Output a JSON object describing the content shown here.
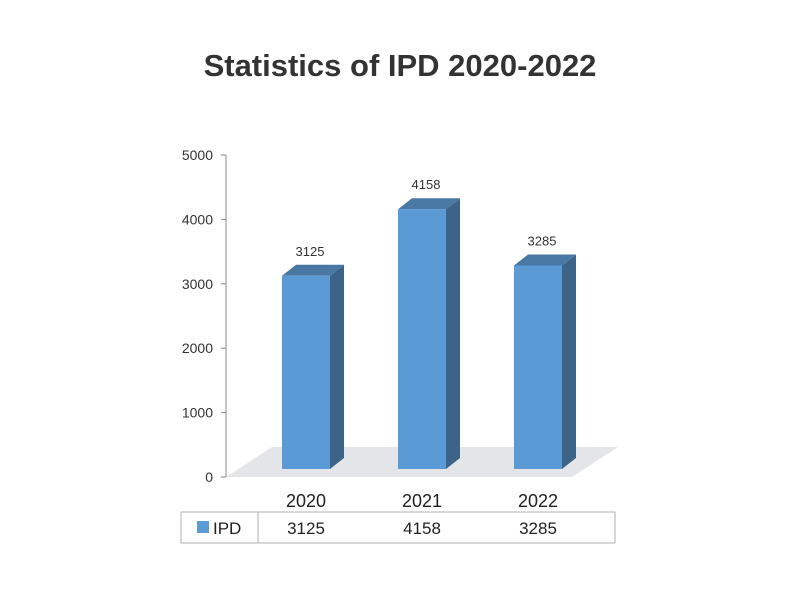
{
  "chart_data": {
    "type": "bar",
    "title": "Statistics of IPD 2020-2022",
    "categories": [
      "2020",
      "2021",
      "2022"
    ],
    "series": [
      {
        "name": "IPD",
        "values": [
          3125,
          4158,
          3285
        ]
      }
    ],
    "ylim": [
      0,
      5000
    ],
    "yticks": [
      0,
      1000,
      2000,
      3000,
      4000,
      5000
    ],
    "grid": false,
    "legend": "data-table-bottom",
    "style": "3d",
    "data_table": true
  },
  "colors": {
    "bar_front": "#5b9bd5",
    "bar_side": "#3d6389",
    "bar_top": "#4a78a4",
    "floor": "#e4e5e8",
    "axis": "#888888",
    "table_border": "#b0b0b0"
  }
}
